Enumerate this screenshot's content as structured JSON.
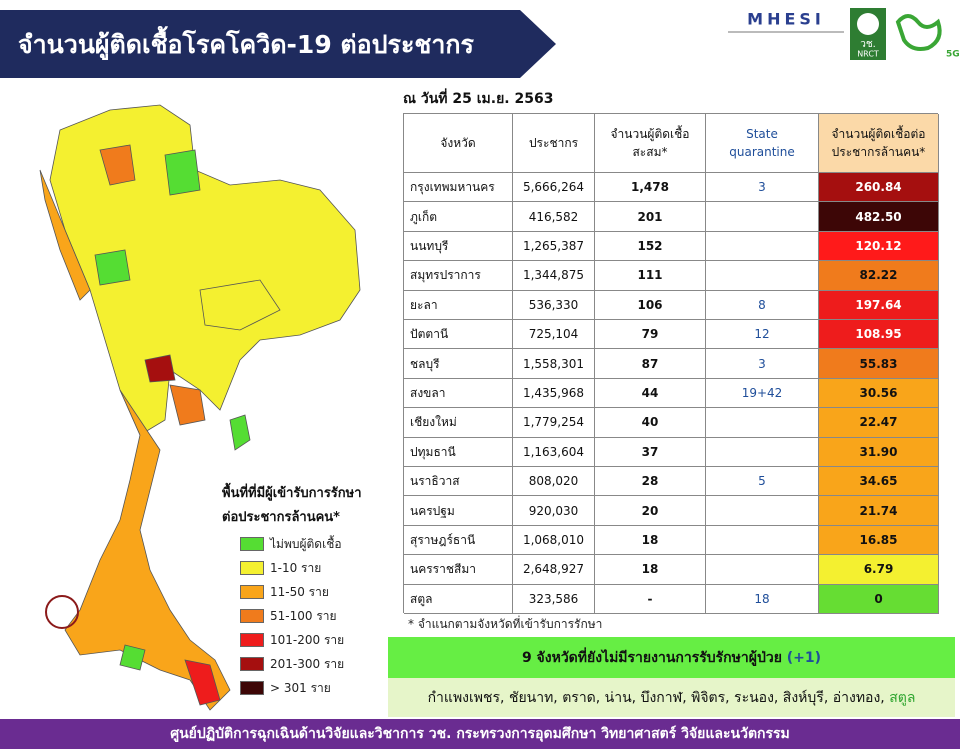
{
  "header": {
    "title": "จำนวนผู้ติดเชื้อโรคโควิด-19  ต่อประชากร",
    "logo_mhesi": "MHESI",
    "logo_nrct_top": "วช.",
    "logo_nrct_bottom": "NRCT",
    "logo_5g": "5G"
  },
  "date": "ณ วันที่ 25 เม.ย. 2563",
  "table": {
    "headers": [
      "จังหวัด",
      "ประชากร",
      "จำนวนผู้ติดเชื้อสะสม*",
      "State quarantine",
      "จำนวนผู้ติดเชื้อต่อประชากรล้านคน*"
    ],
    "rows": [
      [
        "กรุงเทพมหานคร",
        "5,666,264",
        "1,478",
        "3",
        "260.84"
      ],
      [
        "ภูเก็ต",
        "416,582",
        "201",
        "",
        "482.50"
      ],
      [
        "นนทบุรี",
        "1,265,387",
        "152",
        "",
        "120.12"
      ],
      [
        "สมุทรปราการ",
        "1,344,875",
        "111",
        "",
        "82.22"
      ],
      [
        "ยะลา",
        "536,330",
        "106",
        "8",
        "197.64"
      ],
      [
        "ปัตตานี",
        "725,104",
        "79",
        "12",
        "108.95"
      ],
      [
        "ชลบุรี",
        "1,558,301",
        "87",
        "3",
        "55.83"
      ],
      [
        "สงขลา",
        "1,435,968",
        "44",
        "19+42",
        "30.56"
      ],
      [
        "เชียงใหม่",
        "1,779,254",
        "40",
        "",
        "22.47"
      ],
      [
        "ปทุมธานี",
        "1,163,604",
        "37",
        "",
        "31.90"
      ],
      [
        "นราธิวาส",
        "808,020",
        "28",
        "5",
        "34.65"
      ],
      [
        "นครปฐม",
        "920,030",
        "20",
        "",
        "21.74"
      ],
      [
        "สุราษฎร์ธานี",
        "1,068,010",
        "18",
        "",
        "16.85"
      ],
      [
        "นครราชสีมา",
        "2,648,927",
        "18",
        "",
        "6.79"
      ],
      [
        "สตูล",
        "323,586",
        "-",
        "18",
        "0"
      ]
    ],
    "rate_colors": [
      "#a50f0f",
      "#3d0606",
      "#ff1a1a",
      "#f07b1c",
      "#ee1c1c",
      "#ee1c1c",
      "#f07b1c",
      "#f9a51a",
      "#f9a51a",
      "#f9a51a",
      "#f9a51a",
      "#f9a51a",
      "#f9a51a",
      "#f4f030",
      "#66dd33"
    ],
    "footnote": "* จำแนกตามจังหวัดที่เข้ารับการรักษา"
  },
  "legend": {
    "title_lines": [
      "พื้นที่ที่มีผู้เข้ารับการรักษา",
      "ต่อประชากรล้านคน*"
    ],
    "items": [
      {
        "label": "ไม่พบผู้ติดเชื้อ",
        "color": "#55dd33"
      },
      {
        "label": "1-10 ราย",
        "color": "#f4f030"
      },
      {
        "label": "11-50 ราย",
        "color": "#f9a51a"
      },
      {
        "label": "51-100 ราย",
        "color": "#f07b1c"
      },
      {
        "label": "101-200 ราย",
        "color": "#ee1c1c"
      },
      {
        "label": "201-300 ราย",
        "color": "#a50f0f"
      },
      {
        "label": "> 301 ราย",
        "color": "#3d0606"
      }
    ]
  },
  "banner": {
    "title": "9 จังหวัดที่ยังไม่มีรายงานการรับรักษาผู้ป่วย",
    "title_suffix": "(+1)",
    "provinces": "กำแพงเพชร, ชัยนาท, ตราด, น่าน, บึงกาฬ, พิจิตร, ระนอง, สิงห์บุรี, อ่างทอง,",
    "provinces_new": "สตูล"
  },
  "footer": "ศูนย์ปฏิบัติการฉุกเฉินด้านวิจัยและวิชาการ  วช.  กระทรวงการอุดมศึกษา วิทยาศาสตร์ วิจัยและนวัตกรรม"
}
